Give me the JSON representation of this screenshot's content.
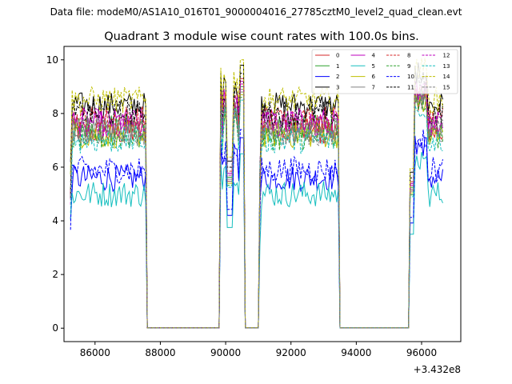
{
  "suptitle": "Data file: modeM0/AS1A10_016T01_9000004016_27785cztM0_level2_quad_clean.evt",
  "chart_data": {
    "type": "line",
    "title": "Quadrant 3 module wise count rates with 100.0s bins.",
    "xlabel": "",
    "ylabel": "",
    "x_offset_label": "+3.432e8",
    "xlim": [
      85050,
      97200
    ],
    "ylim": [
      -0.5,
      10.5
    ],
    "xticks": [
      86000,
      88000,
      90000,
      92000,
      94000,
      96000
    ],
    "xtick_labels": [
      "86000",
      "88000",
      "90000",
      "92000",
      "94000",
      "96000"
    ],
    "yticks": [
      0,
      2,
      4,
      6,
      8,
      10
    ],
    "ytick_labels": [
      "0",
      "2",
      "4",
      "6",
      "8",
      "10"
    ],
    "legend_position": "top-right",
    "segments": [
      {
        "start": 85250,
        "end": 87550,
        "on": true
      },
      {
        "start": 87650,
        "end": 89750,
        "on": false
      },
      {
        "start": 89850,
        "end": 90550,
        "on": true
      },
      {
        "start": 90650,
        "end": 90950,
        "on": false
      },
      {
        "start": 91050,
        "end": 93450,
        "on": true
      },
      {
        "start": 93550,
        "end": 95550,
        "on": false
      },
      {
        "start": 95650,
        "end": 96650,
        "on": true
      }
    ],
    "series": [
      {
        "name": "0",
        "color": "#d62728",
        "dash": false,
        "level": 7.3
      },
      {
        "name": "1",
        "color": "#2ca02c",
        "dash": false,
        "level": 7.5
      },
      {
        "name": "2",
        "color": "#0000ff",
        "dash": false,
        "level": 5.6
      },
      {
        "name": "3",
        "color": "#000000",
        "dash": false,
        "level": 8.3
      },
      {
        "name": "4",
        "color": "#bf00bf",
        "dash": false,
        "level": 7.7
      },
      {
        "name": "5",
        "color": "#17bfbf",
        "dash": false,
        "level": 5.0
      },
      {
        "name": "6",
        "color": "#bfbf00",
        "dash": false,
        "level": 7.2
      },
      {
        "name": "7",
        "color": "#808080",
        "dash": false,
        "level": 7.4
      },
      {
        "name": "8",
        "color": "#d62728",
        "dash": true,
        "level": 7.8
      },
      {
        "name": "9",
        "color": "#2ca02c",
        "dash": true,
        "level": 7.1
      },
      {
        "name": "10",
        "color": "#0000ff",
        "dash": true,
        "level": 5.9
      },
      {
        "name": "11",
        "color": "#000000",
        "dash": true,
        "level": 8.0
      },
      {
        "name": "12",
        "color": "#bf00bf",
        "dash": true,
        "level": 7.6
      },
      {
        "name": "13",
        "color": "#17bfbf",
        "dash": true,
        "level": 7.0
      },
      {
        "name": "14",
        "color": "#bfbf00",
        "dash": true,
        "level": 8.5
      },
      {
        "name": "15",
        "color": "#808080",
        "dash": true,
        "level": 7.3
      }
    ]
  }
}
